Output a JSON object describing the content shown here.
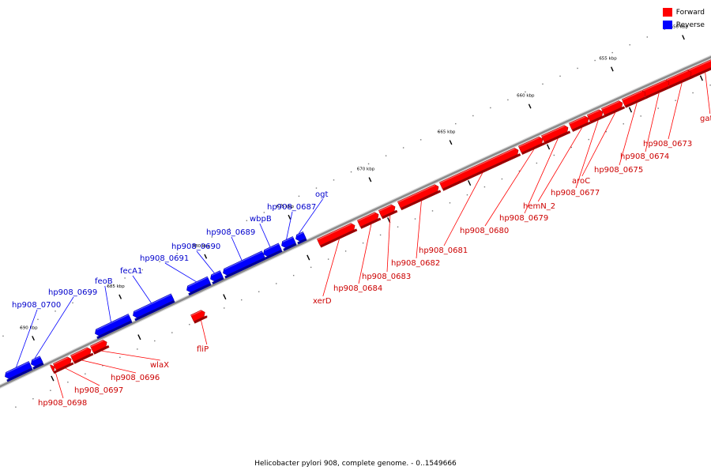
{
  "legend": {
    "items": [
      {
        "label": "Forward",
        "color": "#ff0000"
      },
      {
        "label": "Reverse",
        "color": "#0000ff"
      }
    ]
  },
  "caption": "Helicobacter pylori 908, complete genome. - 0..1549666",
  "colors": {
    "forward": "#ff0000",
    "forward_dark": "#990000",
    "reverse": "#0000ff",
    "reverse_dark": "#000099",
    "backbone": "#8a8a8a",
    "forward_label": "#cc0000",
    "reverse_label": "#0000cc"
  },
  "ticks": [
    "650 kbp",
    "655 kbp",
    "660 kbp",
    "665 kbp",
    "670 kbp",
    "675 kbp",
    "680 kbp",
    "685 kbp",
    "690 kbp"
  ],
  "genes": [
    {
      "name": "gatB",
      "strand": "forward"
    },
    {
      "name": "hp908_0673",
      "strand": "forward"
    },
    {
      "name": "hp908_0674",
      "strand": "forward"
    },
    {
      "name": "hp908_0675",
      "strand": "forward"
    },
    {
      "name": "aroC",
      "strand": "forward"
    },
    {
      "name": "hp908_0677",
      "strand": "forward"
    },
    {
      "name": "hemN_2",
      "strand": "forward"
    },
    {
      "name": "hp908_0679",
      "strand": "forward"
    },
    {
      "name": "hp908_0680",
      "strand": "forward"
    },
    {
      "name": "hp908_0681",
      "strand": "forward"
    },
    {
      "name": "hp908_0682",
      "strand": "forward"
    },
    {
      "name": "hp908_0683",
      "strand": "forward"
    },
    {
      "name": "hp908_0684",
      "strand": "forward"
    },
    {
      "name": "xerD",
      "strand": "forward"
    },
    {
      "name": "ogt",
      "strand": "reverse"
    },
    {
      "name": "hp908_0687",
      "strand": "reverse"
    },
    {
      "name": "wbpB",
      "strand": "reverse"
    },
    {
      "name": "hp908_0689",
      "strand": "reverse"
    },
    {
      "name": "hp908_0690",
      "strand": "reverse"
    },
    {
      "name": "hp908_0691",
      "strand": "reverse"
    },
    {
      "name": "fecA1",
      "strand": "reverse"
    },
    {
      "name": "fliP",
      "strand": "forward"
    },
    {
      "name": "feoB",
      "strand": "reverse"
    },
    {
      "name": "hp908_0699",
      "strand": "reverse"
    },
    {
      "name": "hp908_0700",
      "strand": "reverse"
    },
    {
      "name": "wlaX",
      "strand": "forward"
    },
    {
      "name": "hp908_0696",
      "strand": "forward"
    },
    {
      "name": "hp908_0697",
      "strand": "forward"
    },
    {
      "name": "hp908_0698",
      "strand": "forward"
    }
  ]
}
